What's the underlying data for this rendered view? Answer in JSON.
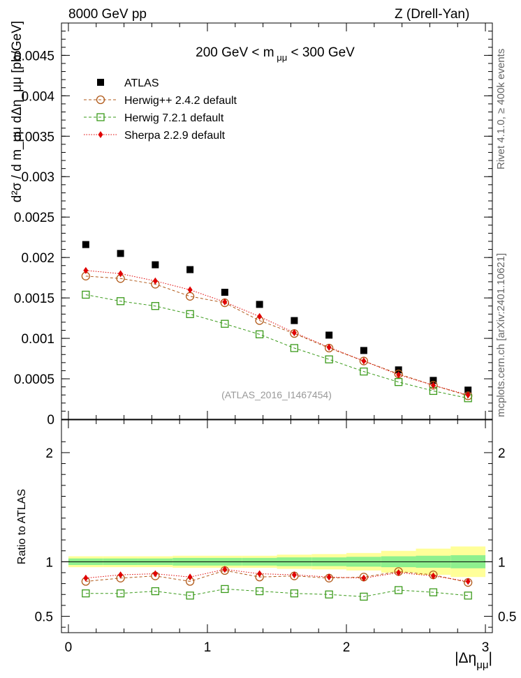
{
  "header": {
    "left": "8000 GeV pp",
    "right": "Z (Drell-Yan)"
  },
  "side_labels": {
    "rivet": "Rivet 4.1.0, ≥ 400k events",
    "mcplots": "mcplots.cern.ch [arXiv:2401.10621]"
  },
  "chart_data": {
    "type": "scatter",
    "title_prefix": "200 GeV < m",
    "title_sub": "μμ",
    "title_suffix": " < 300 GeV",
    "watermark": "(ATLAS_2016_I1467454)",
    "ylabel": "d²σ / d m_μμ dΔη_μμ [pb/GeV]",
    "ratio_ylabel": "Ratio to ATLAS",
    "xlabel": "|Δη",
    "xlabel_sub": "μμ",
    "xlabel_end": "|",
    "xlim": [
      -0.05,
      3.05
    ],
    "ylim": [
      0,
      0.0049
    ],
    "ratio_ylim": [
      0.35,
      2.3
    ],
    "x_ticks": [
      0,
      1,
      2,
      3
    ],
    "y_ticks": [
      0,
      0.0005,
      0.001,
      0.0015,
      0.002,
      0.0025,
      0.003,
      0.0035,
      0.004,
      0.0045
    ],
    "y_tick_labels": [
      "0",
      "0.0005",
      "0.001",
      "0.0015",
      "0.002",
      "0.0025",
      "0.003",
      "0.0035",
      "0.004",
      "0.0045"
    ],
    "ratio_ticks": [
      0.5,
      1,
      2
    ],
    "ratio_tick_labels": [
      "0.5",
      "1",
      "2"
    ],
    "x": [
      0.125,
      0.375,
      0.625,
      0.875,
      1.125,
      1.375,
      1.625,
      1.875,
      2.125,
      2.375,
      2.625,
      2.875
    ],
    "bin_edges": [
      0,
      0.25,
      0.5,
      0.75,
      1.0,
      1.25,
      1.5,
      1.75,
      2.0,
      2.25,
      2.5,
      2.75,
      3.0
    ],
    "band_inner": [
      0.03,
      0.03,
      0.03,
      0.035,
      0.035,
      0.035,
      0.04,
      0.04,
      0.045,
      0.05,
      0.055,
      0.06
    ],
    "band_outer": [
      0.05,
      0.05,
      0.05,
      0.055,
      0.055,
      0.055,
      0.065,
      0.07,
      0.08,
      0.1,
      0.12,
      0.14
    ],
    "series": [
      {
        "name": "ATLAS",
        "marker": "square-filled",
        "color": "#000000",
        "values": [
          0.00216,
          0.00205,
          0.00191,
          0.00185,
          0.00157,
          0.00142,
          0.00122,
          0.00104,
          0.00085,
          0.00061,
          0.00048,
          0.00036
        ]
      },
      {
        "name": "Herwig++ 2.4.2 default",
        "marker": "circle-open",
        "color": "#b15a1a",
        "values": [
          0.00177,
          0.00174,
          0.00167,
          0.00152,
          0.00144,
          0.00122,
          0.00106,
          0.00088,
          0.00072,
          0.00056,
          0.00042,
          0.00029
        ],
        "ratio": [
          0.82,
          0.85,
          0.87,
          0.82,
          0.92,
          0.86,
          0.87,
          0.85,
          0.86,
          0.91,
          0.88,
          0.81
        ]
      },
      {
        "name": "Herwig 7.2.1 default",
        "marker": "square-open",
        "color": "#3a9a1a",
        "values": [
          0.00154,
          0.00146,
          0.0014,
          0.0013,
          0.00118,
          0.00105,
          0.00088,
          0.00074,
          0.00059,
          0.00046,
          0.00035,
          0.00026
        ],
        "ratio": [
          0.71,
          0.71,
          0.73,
          0.69,
          0.75,
          0.73,
          0.71,
          0.7,
          0.68,
          0.74,
          0.72,
          0.69
        ]
      },
      {
        "name": "Sherpa 2.2.9 default",
        "marker": "diamond-filled",
        "color": "#e00000",
        "values": [
          0.00184,
          0.0018,
          0.00171,
          0.0016,
          0.00145,
          0.00127,
          0.00107,
          0.00089,
          0.00072,
          0.00055,
          0.00042,
          0.0003
        ],
        "ratio": [
          0.85,
          0.88,
          0.89,
          0.86,
          0.93,
          0.89,
          0.88,
          0.86,
          0.85,
          0.9,
          0.87,
          0.82
        ]
      }
    ],
    "legend_position": "top-left",
    "colors": {
      "band_inner": "#8ef08e",
      "band_outer": "#ffff99",
      "watermark": "#999999"
    }
  }
}
